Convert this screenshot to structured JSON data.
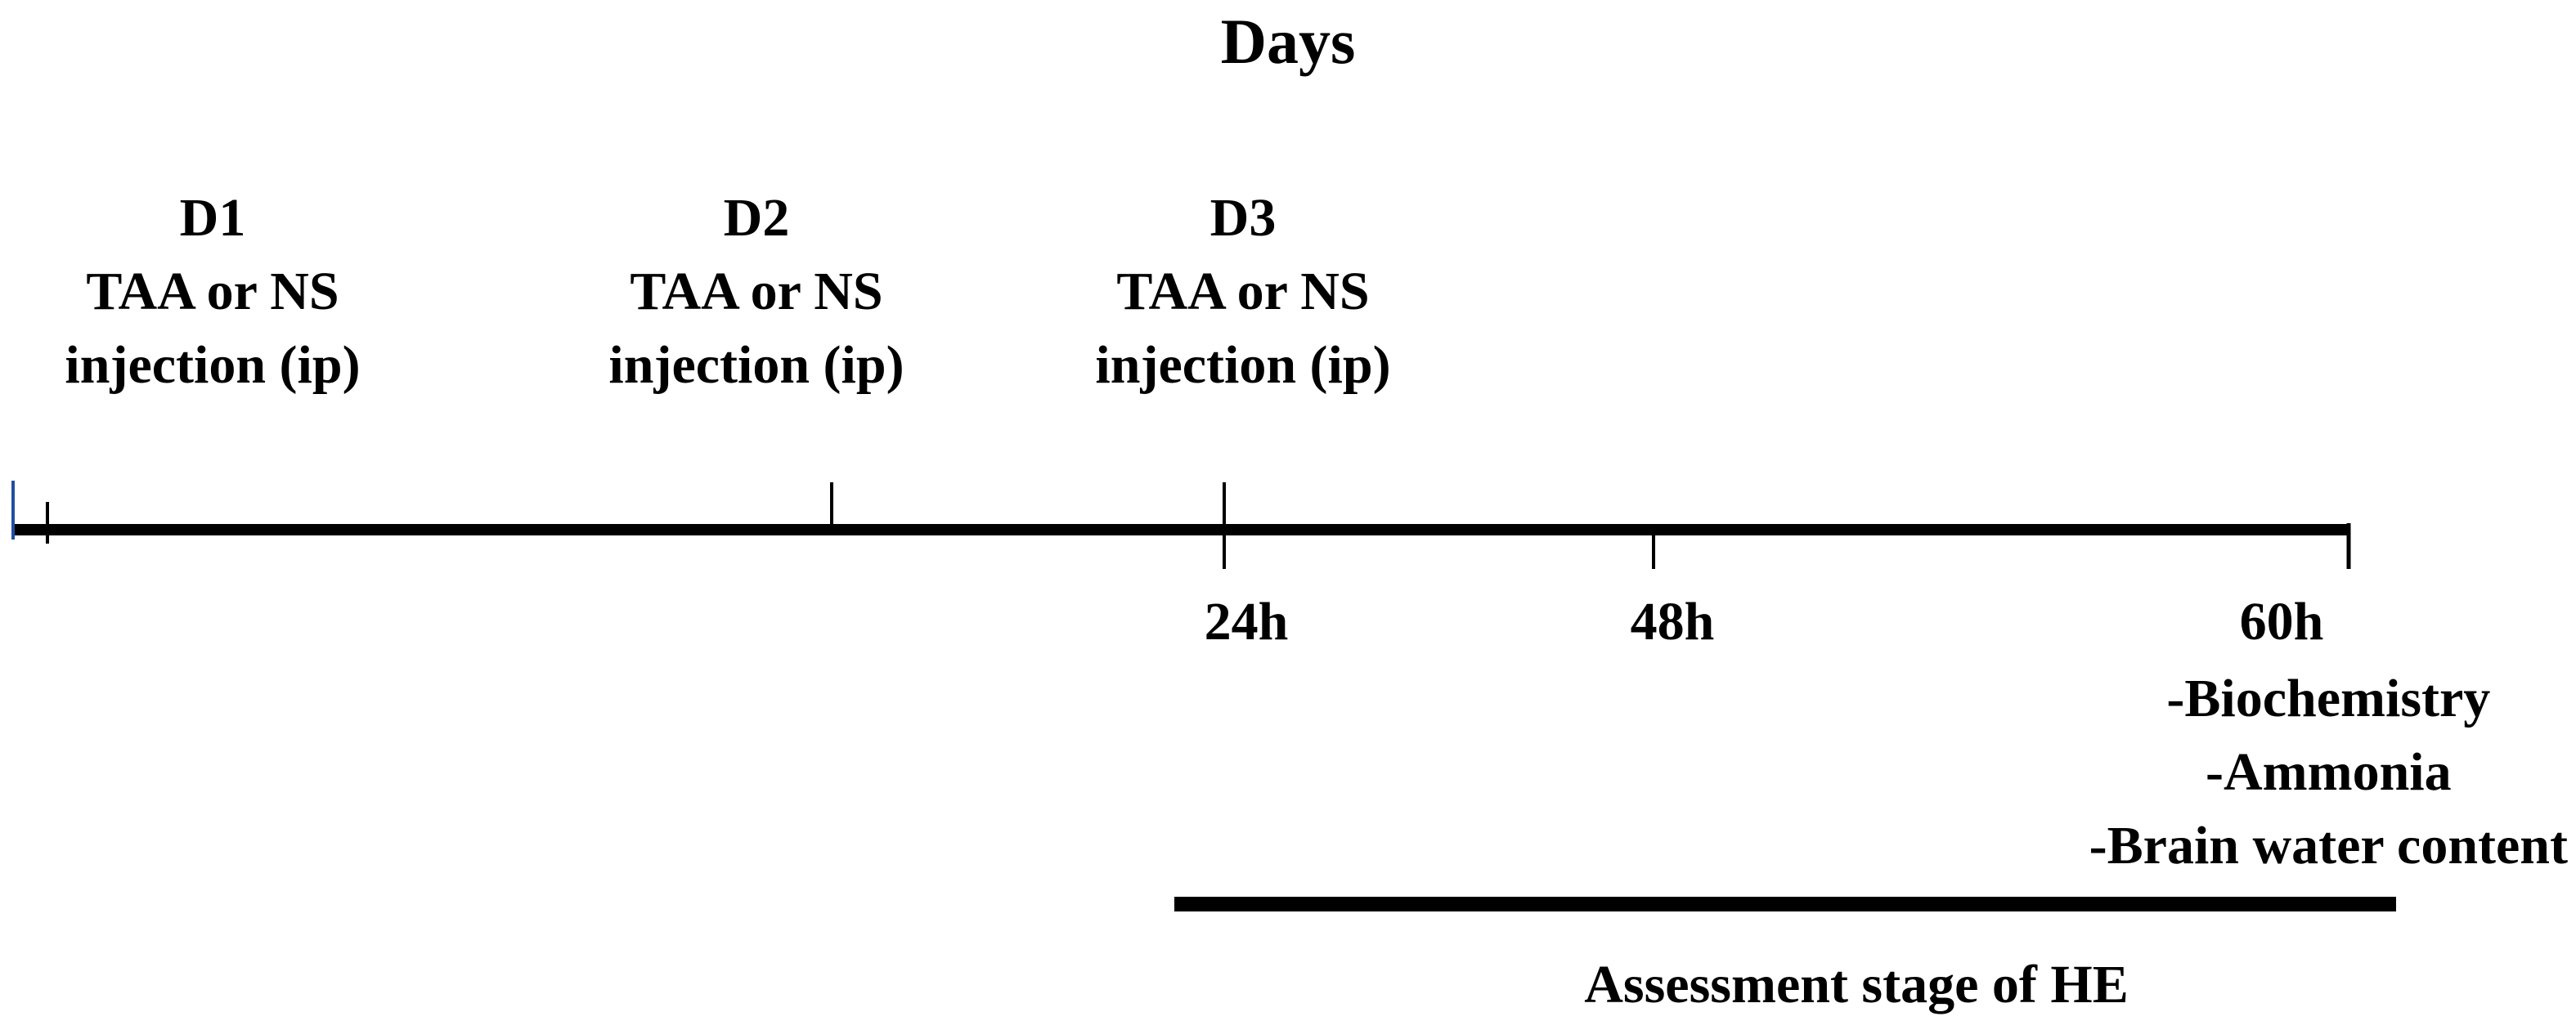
{
  "title": "Days",
  "days": [
    {
      "label": "D1",
      "treatment": "TAA or NS",
      "route": "injection (ip)"
    },
    {
      "label": "D2",
      "treatment": "TAA or NS",
      "route": "injection (ip)"
    },
    {
      "label": "D3",
      "treatment": "TAA or NS",
      "route": "injection (ip)"
    }
  ],
  "hours": [
    "24h",
    "48h",
    "60h"
  ],
  "endpoints": [
    "-Biochemistry",
    "-Ammonia",
    "-Brain water content"
  ],
  "assessment_label": "Assessment stage of HE",
  "colors": {
    "line": "#000000",
    "accent_tick": "#1f4fa0"
  }
}
